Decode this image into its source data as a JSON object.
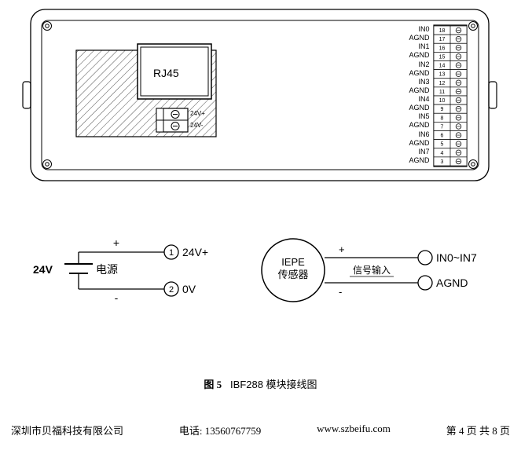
{
  "module": {
    "rj45_label": "RJ45",
    "pwr_labels": {
      "pos": "24V+",
      "neg": "24V-"
    },
    "pin_header": {
      "signals": [
        "IN0",
        "AGND",
        "IN1",
        "AGND",
        "IN2",
        "AGND",
        "IN3",
        "AGND",
        "IN4",
        "AGND",
        "IN5",
        "AGND",
        "IN6",
        "AGND",
        "IN7",
        "AGND"
      ],
      "numbers": [
        18,
        17,
        16,
        15,
        14,
        13,
        12,
        11,
        10,
        9,
        8,
        7,
        6,
        5,
        4,
        3
      ]
    }
  },
  "power_circuit": {
    "voltage_label": "24V",
    "source_label": "电源",
    "pos": "+",
    "neg": "-",
    "term1_num": "1",
    "term1_label": "24V+",
    "term2_num": "2",
    "term2_label": "0V"
  },
  "sensor_circuit": {
    "sensor_line1": "IEPE",
    "sensor_line2": "传感器",
    "pos": "+",
    "neg": "-",
    "signal_label": "信号输入",
    "out1": "IN0~IN7",
    "out2": "AGND"
  },
  "caption": {
    "fig": "图 5",
    "text": "IBF288 模块接线图"
  },
  "footer": {
    "company": "深圳市贝福科技有限公司",
    "phone_label": "电话:",
    "phone": "13560767759",
    "url": "www.szbeifu.com",
    "page": "第 4 页 共 8 页"
  },
  "colors": {
    "line": "#000000",
    "bg": "#ffffff"
  }
}
